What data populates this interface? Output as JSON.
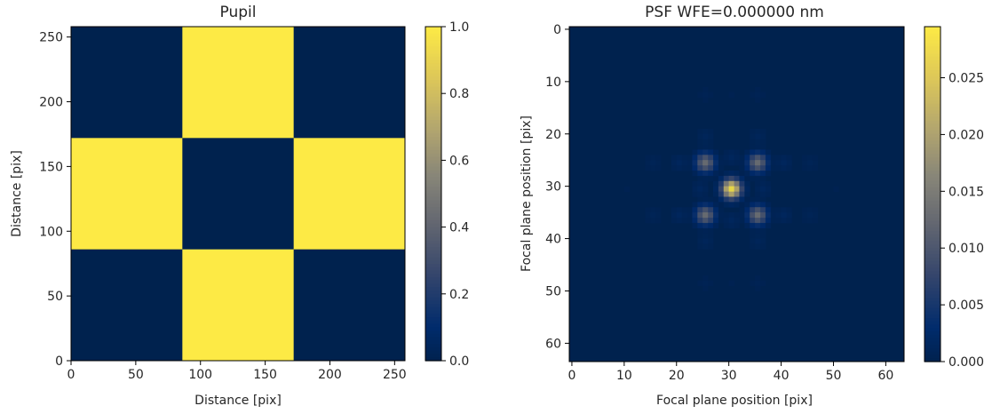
{
  "chart_data": [
    {
      "type": "heatmap",
      "title": "Pupil",
      "xlabel": "Distance [pix]",
      "ylabel": "Distance [pix]",
      "xlim": [
        0,
        258
      ],
      "ylim": [
        258,
        0
      ],
      "x_ticks": [
        "0",
        "50",
        "100",
        "150",
        "200",
        "250"
      ],
      "y_ticks": [
        "0",
        "50",
        "100",
        "150",
        "200",
        "250"
      ],
      "colormap": "cividis",
      "colorbar": {
        "range": [
          0.0,
          1.0
        ],
        "ticks": [
          "0.0",
          "0.2",
          "0.4",
          "0.6",
          "0.8",
          "1.0"
        ]
      },
      "grid_size": 3,
      "cell_values": [
        [
          0,
          1,
          0
        ],
        [
          1,
          0,
          1
        ],
        [
          0,
          1,
          0
        ]
      ]
    },
    {
      "type": "heatmap",
      "title": "PSF WFE=0.000000 nm",
      "xlabel": "Focal plane position [pix]",
      "ylabel": "Focal plane position [pix]",
      "xlim": [
        0,
        63
      ],
      "ylim": [
        63,
        0
      ],
      "x_ticks": [
        "0",
        "10",
        "20",
        "30",
        "40",
        "50",
        "60"
      ],
      "y_ticks": [
        "0",
        "10",
        "20",
        "30",
        "40",
        "50",
        "60"
      ],
      "colormap": "cividis",
      "colorbar": {
        "range": [
          0.0,
          0.0295
        ],
        "ticks": [
          "0.000",
          "0.005",
          "0.010",
          "0.015",
          "0.020",
          "0.025"
        ]
      },
      "grid_size": 64,
      "peaks": [
        {
          "x": 31,
          "y": 31,
          "value": 0.029
        },
        {
          "x": 26,
          "y": 26,
          "value": 0.0135
        },
        {
          "x": 36,
          "y": 26,
          "value": 0.0135
        },
        {
          "x": 26,
          "y": 36,
          "value": 0.0135
        },
        {
          "x": 36,
          "y": 36,
          "value": 0.0135
        },
        {
          "x": 31,
          "y": 25,
          "value": 0.0015
        },
        {
          "x": 31,
          "y": 37,
          "value": 0.0015
        },
        {
          "x": 25,
          "y": 31,
          "value": 0.0015
        },
        {
          "x": 37,
          "y": 31,
          "value": 0.0015
        },
        {
          "x": 21,
          "y": 26,
          "value": 0.0015
        },
        {
          "x": 41,
          "y": 26,
          "value": 0.0015
        },
        {
          "x": 21,
          "y": 36,
          "value": 0.0015
        },
        {
          "x": 41,
          "y": 36,
          "value": 0.0015
        },
        {
          "x": 26,
          "y": 21,
          "value": 0.0012
        },
        {
          "x": 36,
          "y": 21,
          "value": 0.0012
        },
        {
          "x": 26,
          "y": 41,
          "value": 0.0012
        },
        {
          "x": 36,
          "y": 41,
          "value": 0.0012
        },
        {
          "x": 16,
          "y": 26,
          "value": 0.0009
        },
        {
          "x": 46,
          "y": 26,
          "value": 0.0009
        },
        {
          "x": 16,
          "y": 36,
          "value": 0.0009
        },
        {
          "x": 46,
          "y": 36,
          "value": 0.0009
        },
        {
          "x": 26,
          "y": 13,
          "value": 0.0007
        },
        {
          "x": 36,
          "y": 13,
          "value": 0.0007
        },
        {
          "x": 26,
          "y": 49,
          "value": 0.0007
        },
        {
          "x": 36,
          "y": 49,
          "value": 0.0007
        },
        {
          "x": 31,
          "y": 13,
          "value": 0.0004
        },
        {
          "x": 31,
          "y": 49,
          "value": 0.0004
        },
        {
          "x": 11,
          "y": 31,
          "value": 0.0004
        },
        {
          "x": 51,
          "y": 31,
          "value": 0.0004
        }
      ]
    }
  ]
}
